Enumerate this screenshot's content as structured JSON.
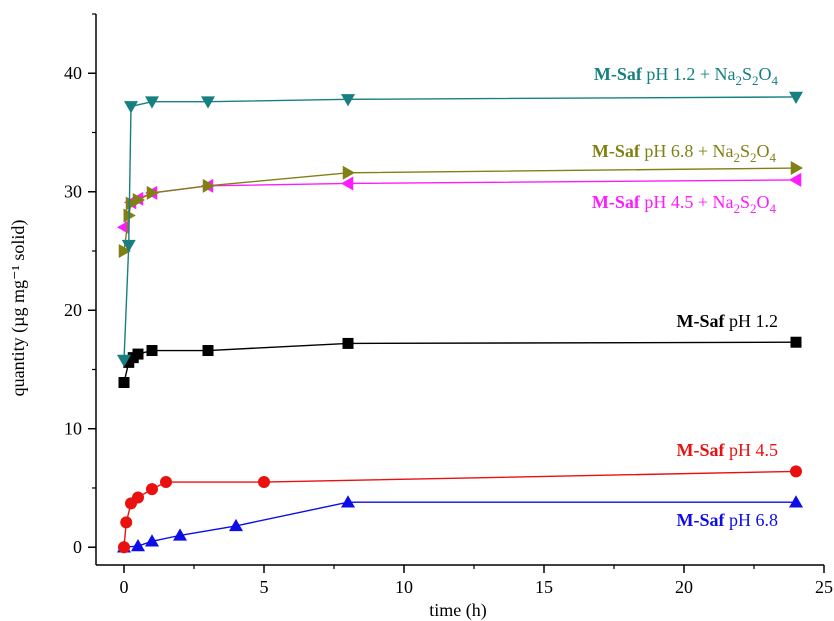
{
  "chart_data": {
    "type": "line",
    "xlabel": "time (h)",
    "ylabel": "quantity (µg mg⁻¹ solid)",
    "xlim": [
      -1,
      25
    ],
    "ylim": [
      -1.5,
      45
    ],
    "xticks": [
      0,
      5,
      10,
      15,
      20,
      25
    ],
    "yticks": [
      0,
      10,
      20,
      30,
      40
    ],
    "series": [
      {
        "label_bold": "M-Saf",
        "label_rest": " pH 1.2 + Na",
        "sub1": "2",
        "mid": "S",
        "sub2": "2",
        "tail": "O",
        "sub3": "4",
        "color": "#168080",
        "marker": "triangle-down",
        "x": [
          0,
          0.17,
          0.25,
          1,
          3,
          8,
          24
        ],
        "y": [
          15.8,
          25.5,
          37.2,
          37.6,
          37.6,
          37.8,
          38.0
        ]
      },
      {
        "label_bold": "M-Saf",
        "label_rest": " pH 6.8 + Na",
        "sub1": "2",
        "mid": "S",
        "sub2": "2",
        "tail": "O",
        "sub3": "4",
        "color": "#808015",
        "marker": "triangle-right",
        "x": [
          0,
          0.17,
          0.25,
          0.5,
          1,
          3,
          8,
          24
        ],
        "y": [
          25.0,
          28.0,
          29.0,
          29.3,
          29.9,
          30.5,
          31.6,
          32.0
        ]
      },
      {
        "label_bold": "M-Saf",
        "label_rest": " pH 4.5 + Na",
        "sub1": "2",
        "mid": "S",
        "sub2": "2",
        "tail": "O",
        "sub3": "4",
        "color": "#ff1aff",
        "marker": "triangle-left",
        "x": [
          0,
          0.25,
          0.5,
          1,
          3,
          8,
          24
        ],
        "y": [
          27.0,
          29.1,
          29.4,
          29.9,
          30.5,
          30.7,
          31.0
        ]
      },
      {
        "label_bold": "M-Saf",
        "label_rest": " pH 1.2",
        "color": "#000000",
        "marker": "square",
        "x": [
          0,
          0.17,
          0.33,
          0.5,
          1,
          3,
          8,
          24
        ],
        "y": [
          13.9,
          15.6,
          16.0,
          16.3,
          16.6,
          16.6,
          17.2,
          17.3
        ]
      },
      {
        "label_bold": "M-Saf",
        "label_rest": " pH 4.5",
        "color": "#e8110f",
        "marker": "circle",
        "x": [
          0,
          0.08,
          0.25,
          0.5,
          1,
          1.5,
          5,
          24
        ],
        "y": [
          0,
          2.1,
          3.7,
          4.2,
          4.9,
          5.5,
          5.5,
          6.4
        ]
      },
      {
        "label_bold": "M-Saf",
        "label_rest": " pH 6.8",
        "color": "#0d0de8",
        "marker": "triangle-up",
        "x": [
          0,
          0.5,
          1,
          2,
          4,
          8,
          24
        ],
        "y": [
          0,
          0.1,
          0.5,
          1.0,
          1.8,
          3.8,
          3.8
        ]
      }
    ]
  }
}
